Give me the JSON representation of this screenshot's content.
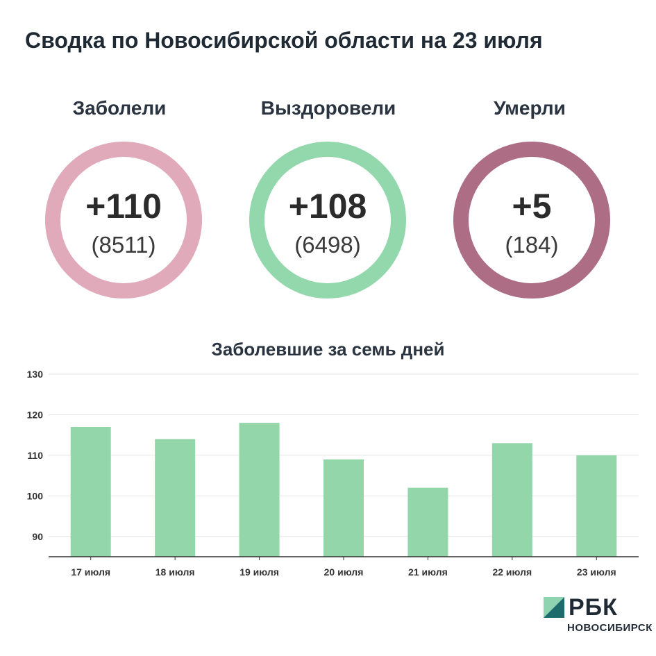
{
  "title": "Сводка по Новосибирской области на 23 июля",
  "stats": [
    {
      "label": "Заболели",
      "delta": "+110",
      "total": "(8511)",
      "color": "#e0aabb"
    },
    {
      "label": "Выздоровели",
      "delta": "+108",
      "total": "(6498)",
      "color": "#93d8ac"
    },
    {
      "label": "Умерли",
      "delta": "+5",
      "total": "(184)",
      "color": "#ad6d85"
    }
  ],
  "chart_data": {
    "type": "bar",
    "title": "Заболевшие за семь дней",
    "categories": [
      "17 июля",
      "18 июля",
      "19 июля",
      "20 июля",
      "21 июля",
      "22 июля",
      "23 июля"
    ],
    "values": [
      117,
      114,
      118,
      109,
      102,
      113,
      110
    ],
    "ylim": [
      85,
      130
    ],
    "yticks": [
      90,
      100,
      110,
      120,
      130
    ],
    "grid": true,
    "bar_color": "#93d6aa"
  },
  "brand": {
    "name": "РБК",
    "sub": "НОВОСИБИРСК",
    "color_light": "#8fd4b0",
    "color_dark": "#1d6b6b"
  }
}
